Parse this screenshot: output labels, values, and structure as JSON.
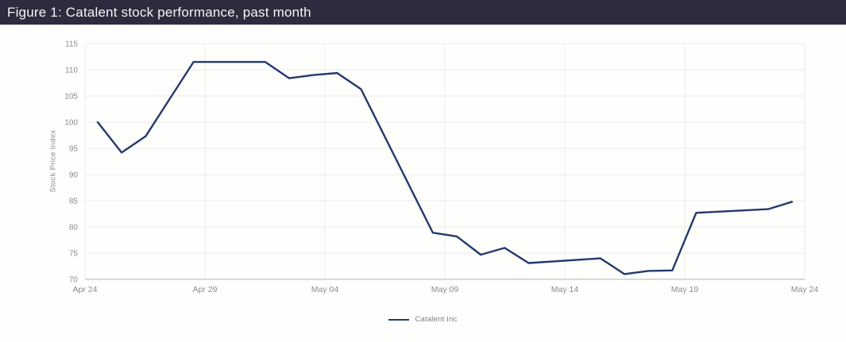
{
  "colors": {
    "header_bg": "#2f2b3e",
    "header_text": "#f5f4f7",
    "line": "#233a6d",
    "grid": "#e9e9e9",
    "axis": "#b4b4b8",
    "tick_text": "#8b8b8b",
    "background": "#fefefc"
  },
  "chart_data": {
    "type": "line",
    "title": "Figure 1: Catalent stock performance, past month",
    "xlabel": "",
    "ylabel": "Stock Price Index",
    "ylim": [
      70,
      115
    ],
    "y_ticks": [
      70,
      75,
      80,
      85,
      90,
      95,
      100,
      105,
      110,
      115
    ],
    "x_ticks": [
      {
        "label": "Apr 24",
        "day": 0
      },
      {
        "label": "Apr 29",
        "day": 5
      },
      {
        "label": "May 04",
        "day": 10
      },
      {
        "label": "May 09",
        "day": 15
      },
      {
        "label": "May 14",
        "day": 20
      },
      {
        "label": "May 19",
        "day": 25
      },
      {
        "label": "May 24",
        "day": 30
      }
    ],
    "grid": true,
    "legend_position": "bottom",
    "series": [
      {
        "name": "Catalent Inc",
        "color": "#233a6d",
        "points": [
          {
            "date": "Apr 24",
            "day": 0,
            "value": 100.0
          },
          {
            "date": "Apr 25",
            "day": 1,
            "value": 94.2
          },
          {
            "date": "Apr 26",
            "day": 2,
            "value": 97.3
          },
          {
            "date": "Apr 27",
            "day": 3,
            "value": 104.4
          },
          {
            "date": "Apr 28",
            "day": 4,
            "value": 111.5
          },
          {
            "date": "May 01",
            "day": 7,
            "value": 111.5
          },
          {
            "date": "May 02",
            "day": 8,
            "value": 108.4
          },
          {
            "date": "May 03",
            "day": 9,
            "value": 109.0
          },
          {
            "date": "May 04",
            "day": 10,
            "value": 109.4
          },
          {
            "date": "May 05",
            "day": 11,
            "value": 106.3
          },
          {
            "date": "May 08",
            "day": 14,
            "value": 78.9
          },
          {
            "date": "May 09",
            "day": 15,
            "value": 78.2
          },
          {
            "date": "May 10",
            "day": 16,
            "value": 74.7
          },
          {
            "date": "May 11",
            "day": 17,
            "value": 76.0
          },
          {
            "date": "May 12",
            "day": 18,
            "value": 73.1
          },
          {
            "date": "May 15",
            "day": 21,
            "value": 74.0
          },
          {
            "date": "May 16",
            "day": 22,
            "value": 71.0
          },
          {
            "date": "May 17",
            "day": 23,
            "value": 71.6
          },
          {
            "date": "May 18",
            "day": 24,
            "value": 71.7
          },
          {
            "date": "May 19",
            "day": 25,
            "value": 82.7
          },
          {
            "date": "May 22",
            "day": 28,
            "value": 83.4
          },
          {
            "date": "May 23",
            "day": 29,
            "value": 84.8
          }
        ]
      }
    ]
  }
}
